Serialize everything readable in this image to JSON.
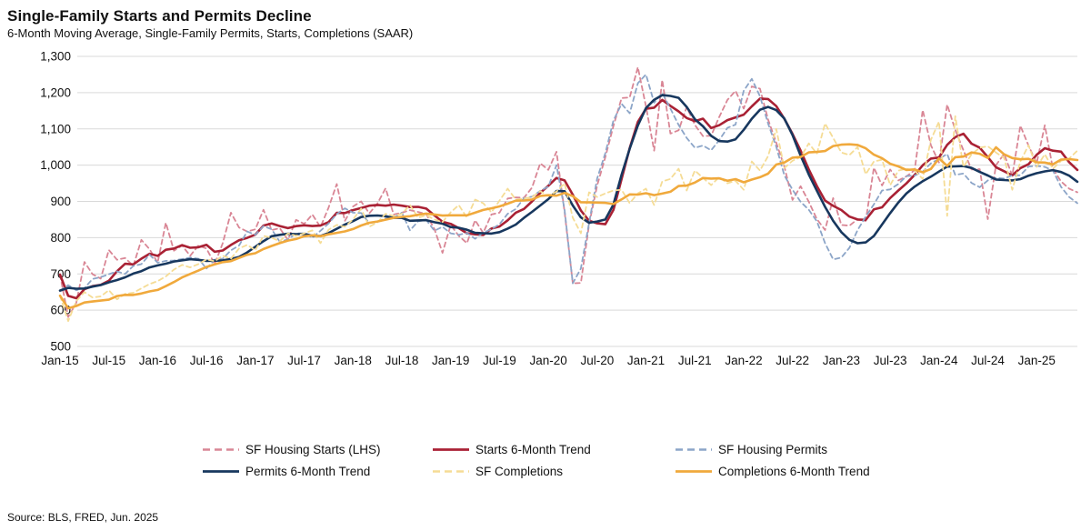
{
  "header": {
    "title": "Single-Family Starts and Permits Decline",
    "subtitle": "6-Month Moving Average, Single-Family Permits, Starts, Completions (SAAR)"
  },
  "source": "Source: BLS, FRED, Jun. 2025",
  "chart_data": {
    "type": "line",
    "title": "Single-Family Starts and Permits Decline",
    "subtitle": "6-Month Moving Average, Single-Family Permits, Starts, Completions (SAAR)",
    "units": "thousands of units, seasonally adjusted annual rate",
    "x_frequency": "monthly",
    "x_start": "Jan-2015",
    "x_end": "Jun-2025",
    "x_tick_labels": [
      "Jan-15",
      "Jul-15",
      "Jan-16",
      "Jul-16",
      "Jan-17",
      "Jul-17",
      "Jan-18",
      "Jul-18",
      "Jan-19",
      "Jul-19",
      "Jan-20",
      "Jul-20",
      "Jan-21",
      "Jul-21",
      "Jan-22",
      "Jul-22",
      "Jan-23",
      "Jul-23",
      "Jan-24",
      "Jul-24",
      "Jan-25"
    ],
    "x_tick_step_months": 6,
    "ylim": [
      500,
      1300
    ],
    "y_ticks": [
      500,
      600,
      700,
      800,
      900,
      1000,
      1100,
      1200,
      1300
    ],
    "y_tick_labels": [
      "500",
      "600",
      "700",
      "800",
      "900",
      "1,000",
      "1,100",
      "1,200",
      "1,300"
    ],
    "grid": "horizontal",
    "legend_position": "bottom",
    "trend_definition": "6-month trailing moving average of the corresponding raw series",
    "series": [
      {
        "name": "SF Housing Starts (LHS)",
        "style": "dashed",
        "color": "#D98695",
        "values": [
          698,
          581,
          620,
          733,
          699,
          687,
          766,
          739,
          744,
          722,
          794,
          768,
          731,
          841,
          764,
          778,
          750,
          778,
          770,
          727,
          785,
          869,
          828,
          817,
          823,
          877,
          821,
          826,
          794,
          849,
          838,
          864,
          829,
          883,
          948,
          846,
          886,
          900,
          867,
          894,
          936,
          864,
          869,
          876,
          871,
          865,
          824,
          758,
          835,
          805,
          785,
          848,
          813,
          864,
          869,
          908,
          911,
          910,
          938,
          1005,
          987,
          1037,
          871,
          674,
          675,
          836,
          944,
          1022,
          1108,
          1185,
          1187,
          1270,
          1162,
          1040,
          1235,
          1087,
          1096,
          1160,
          1111,
          1080,
          1081,
          1133,
          1180,
          1205,
          1156,
          1217,
          1211,
          1126,
          1062,
          996,
          904,
          942,
          899,
          851,
          821,
          909,
          835,
          833,
          851,
          846,
          993,
          944,
          988,
          958,
          969,
          986,
          1152,
          1055,
          1007,
          1167,
          1097,
          1041,
          988,
          989,
          851,
          1000,
          1031,
          971,
          1109,
          1054,
          1005,
          1110,
          990,
          955,
          935,
          925
        ]
      },
      {
        "name": "Starts 6-Month Trend",
        "style": "solid",
        "color": "#A92134",
        "derived_from": 0,
        "window": 6
      },
      {
        "name": "SF Housing Permits",
        "style": "dashed",
        "color": "#8CA5C8",
        "values": [
          654,
          669,
          655,
          661,
          686,
          691,
          699,
          707,
          700,
          722,
          727,
          753,
          731,
          736,
          737,
          741,
          745,
          742,
          715,
          739,
          742,
          765,
          778,
          817,
          808,
          832,
          823,
          789,
          795,
          812,
          812,
          800,
          819,
          839,
          865,
          881,
          869,
          868,
          840,
          844,
          853,
          854,
          869,
          820,
          845,
          849,
          819,
          830,
          812,
          808,
          813,
          797,
          814,
          823,
          837,
          866,
          879,
          909,
          913,
          929,
          941,
          1000,
          876,
          674,
          715,
          840,
          963,
          1033,
          1123,
          1169,
          1143,
          1226,
          1250,
          1172,
          1199,
          1156,
          1111,
          1075,
          1048,
          1054,
          1041,
          1069,
          1103,
          1112,
          1205,
          1238,
          1190,
          1115,
          1051,
          972,
          932,
          899,
          877,
          845,
          785,
          740,
          745,
          772,
          821,
          858,
          892,
          930,
          933,
          948,
          970,
          971,
          982,
          1005,
          1017,
          1031,
          973,
          977,
          951,
          939,
          958,
          965,
          963,
          972,
          972,
          996,
          998,
          995,
          985,
          940,
          912,
          895
        ]
      },
      {
        "name": "Permits 6-Month Trend",
        "style": "solid",
        "color": "#17375E",
        "derived_from": 2,
        "window": 6
      },
      {
        "name": "SF Completions",
        "style": "dashed",
        "color": "#F5DC95",
        "values": [
          640,
          570,
          625,
          650,
          635,
          638,
          655,
          630,
          645,
          648,
          660,
          672,
          680,
          693,
          712,
          725,
          718,
          727,
          740,
          735,
          750,
          742,
          770,
          780,
          765,
          805,
          800,
          790,
          812,
          805,
          812,
          820,
          785,
          822,
          835,
          830,
          850,
          880,
          830,
          842,
          866,
          860,
          866,
          890,
          855,
          862,
          850,
          843,
          870,
          890,
          855,
          905,
          895,
          870,
          902,
          935,
          905,
          908,
          912,
          928,
          915,
          927,
          950,
          855,
          812,
          925,
          912,
          922,
          930,
          932,
          895,
          922,
          935,
          890,
          955,
          962,
          990,
          930,
          985,
          965,
          945,
          967,
          950,
          957,
          932,
          1010,
          985,
          1025,
          1100,
          992,
          1012,
          1022,
          1060,
          1032,
          1115,
          1075,
          1035,
          1028,
          1050,
          975,
          1010,
          1015,
          945,
          985,
          990,
          985,
          962,
          1070,
          1120,
          860,
          1135,
          995,
          1030,
          1048,
          1052,
          1035,
          1020,
          932,
          1010,
          1055,
          995,
          1030,
          990,
          1012,
          1018,
          1040
        ]
      },
      {
        "name": "Completions 6-Month Trend",
        "style": "solid",
        "color": "#F0A93C",
        "derived_from": 4,
        "window": 6
      }
    ]
  }
}
